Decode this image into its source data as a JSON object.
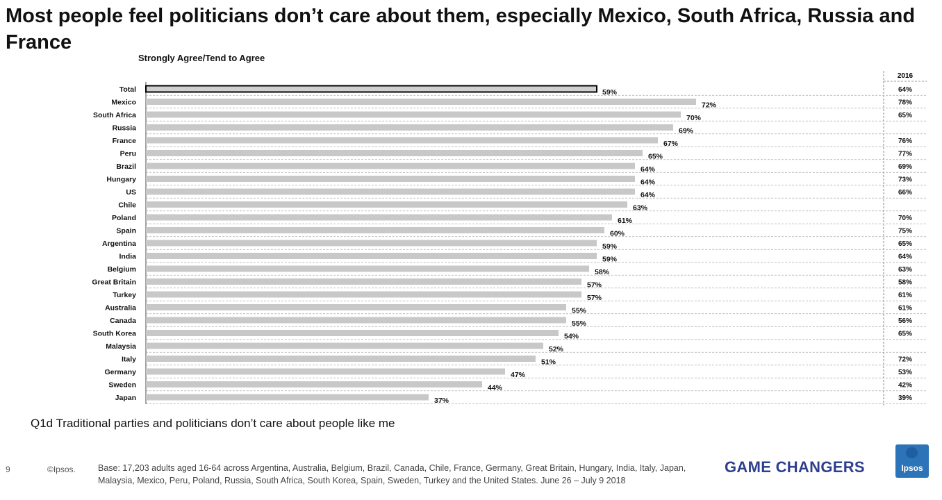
{
  "title": "Most people feel politicians don’t care about them, especially Mexico, South Africa, Russia and France",
  "subtitle": "Strongly Agree/Tend to Agree",
  "question": "Q1d Traditional parties and politicians don’t care about people like me",
  "footer": {
    "page_number": "9",
    "copyright": "©Ipsos.",
    "base_note": "Base: 17,203 adults aged 16-64 across  Argentina, Australia, Belgium, Brazil, Canada, Chile, France, Germany, Great Britain, Hungary, India, Italy, Japan, Malaysia, Mexico, Peru, Poland, Russia, South Africa, South Korea, Spain, Sweden, Turkey and the United States. June 26 – July 9 2018",
    "tagline": "GAME CHANGERS",
    "logo_text": "Ipsos"
  },
  "colors": {
    "bar": "#c8c8c8",
    "total_bar": "#d0d0d0",
    "total_outline": "#000000",
    "title": "#111111",
    "tagline": "#2f3f8f",
    "logo": "#2d73b8"
  },
  "chart_data": {
    "type": "bar",
    "orientation": "horizontal",
    "title": "Strongly Agree/Tend to Agree",
    "xlim": [
      0,
      100
    ],
    "value_suffix": "%",
    "categories": [
      "Total",
      "Mexico",
      "South Africa",
      "Russia",
      "France",
      "Peru",
      "Brazil",
      "Hungary",
      "US",
      "Chile",
      "Poland",
      "Spain",
      "Argentina",
      "India",
      "Belgium",
      "Great Britain",
      "Turkey",
      "Australia",
      "Canada",
      "South Korea",
      "Malaysia",
      "Italy",
      "Germany",
      "Sweden",
      "Japan"
    ],
    "values": [
      59,
      72,
      70,
      69,
      67,
      65,
      64,
      64,
      64,
      63,
      61,
      60,
      59,
      59,
      58,
      57,
      57,
      55,
      55,
      54,
      52,
      51,
      47,
      44,
      37
    ],
    "highlight_category": "Total",
    "comparison": {
      "header": "2016",
      "values": [
        64,
        78,
        65,
        null,
        76,
        77,
        69,
        73,
        66,
        null,
        70,
        75,
        65,
        64,
        63,
        58,
        61,
        61,
        56,
        65,
        null,
        72,
        53,
        42,
        39
      ]
    }
  }
}
